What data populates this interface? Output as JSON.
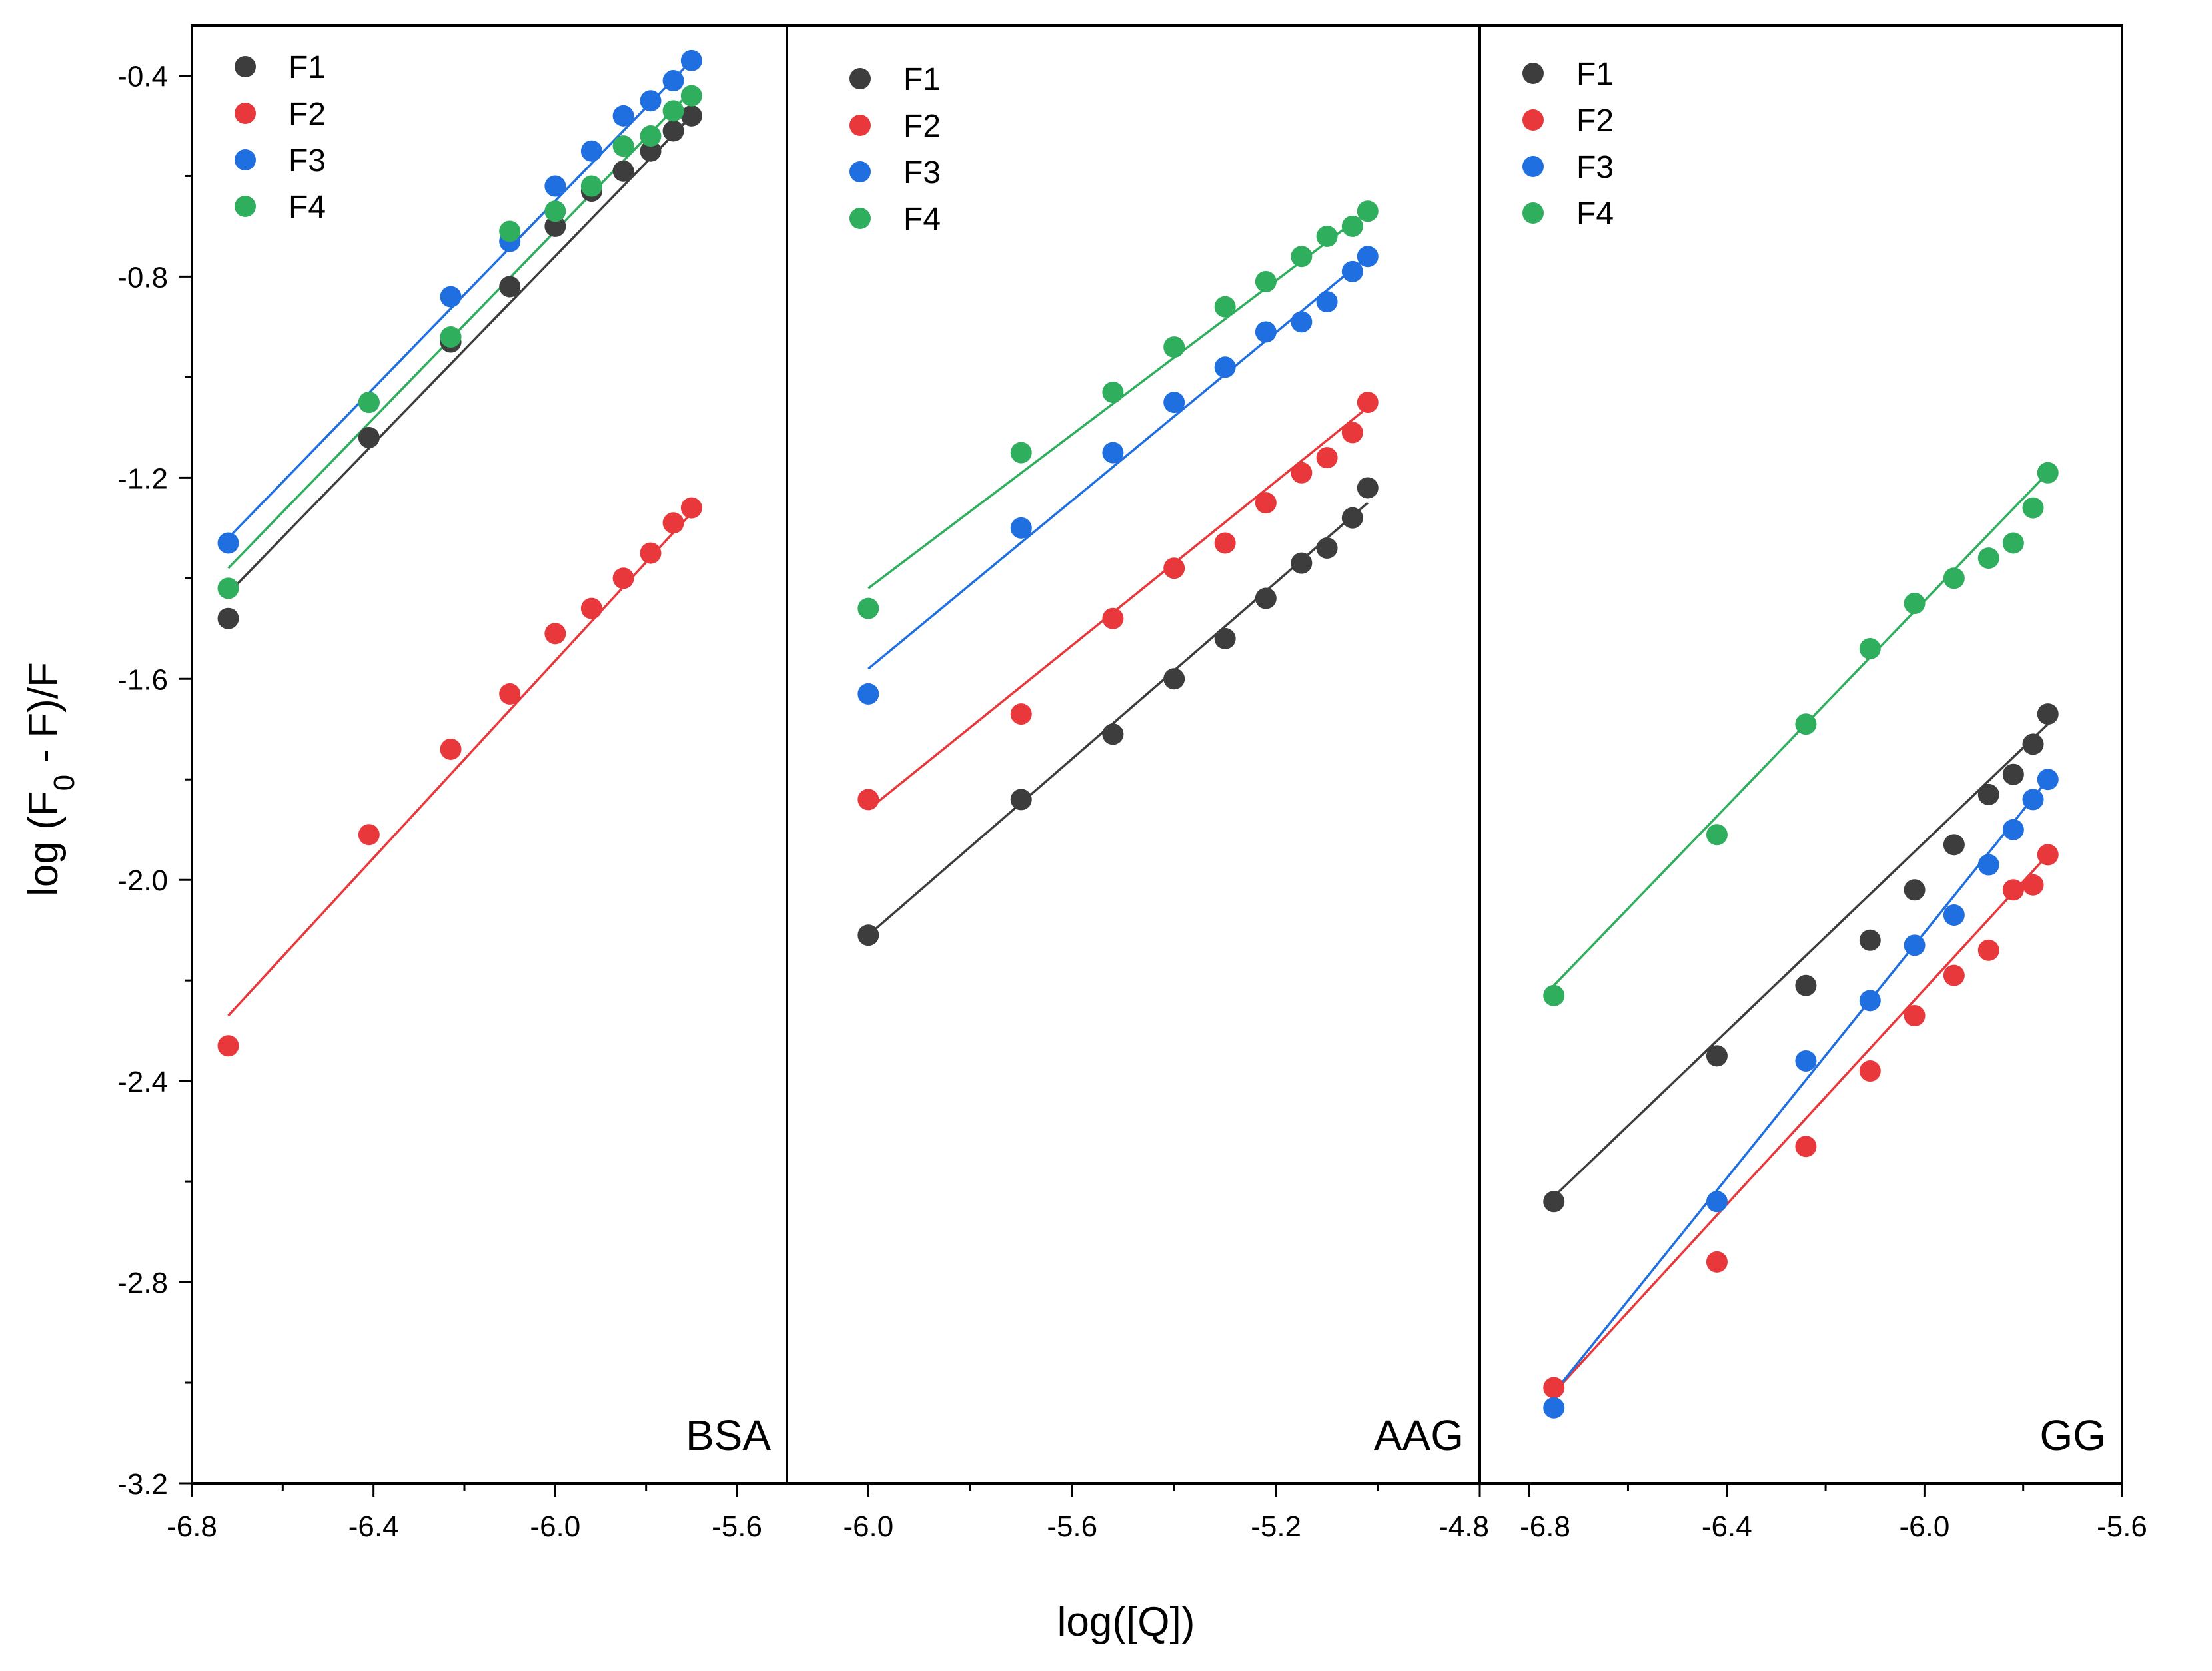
{
  "chart_data": {
    "type": "scatter",
    "xlabel": "log([Q])",
    "ylabel_prefix": "log (F",
    "ylabel_sub": "0",
    "ylabel_suffix": " - F)/F",
    "ylim": [
      -3.2,
      -0.3
    ],
    "yticks": [
      "-0.4",
      "-0.8",
      "-1.2",
      "-1.6",
      "-2.0",
      "-2.4",
      "-2.8",
      "-3.2"
    ],
    "yticks_values": [
      -0.4,
      -0.8,
      -1.2,
      -1.6,
      -2.0,
      -2.4,
      -2.8,
      -3.2
    ],
    "grid": false,
    "legend_position": "top-left",
    "colors": {
      "F1": "#3d3d3d",
      "F2": "#e8383b",
      "F3": "#1f6fe0",
      "F4": "#2fae5e"
    },
    "panels": [
      {
        "label": "BSA",
        "xlim": [
          -6.8,
          -5.49
        ],
        "xticks": [
          "-6.8",
          "-6.4",
          "-6.0",
          "-5.6"
        ],
        "xticks_values": [
          -6.8,
          -6.4,
          -6.0,
          -5.6
        ],
        "series": [
          {
            "name": "F1",
            "x": [
              -6.72,
              -6.41,
              -6.23,
              -6.1,
              -6.0,
              -5.92,
              -5.85,
              -5.79,
              -5.74,
              -5.7
            ],
            "y": [
              -1.48,
              -1.12,
              -0.93,
              -0.82,
              -0.7,
              -0.63,
              -0.59,
              -0.55,
              -0.51,
              -0.48
            ],
            "fit": [
              [
                -6.72,
                -1.43
              ],
              [
                -5.7,
                -0.48
              ]
            ]
          },
          {
            "name": "F2",
            "x": [
              -6.72,
              -6.41,
              -6.23,
              -6.1,
              -6.0,
              -5.92,
              -5.85,
              -5.79,
              -5.74,
              -5.7
            ],
            "y": [
              -2.33,
              -1.91,
              -1.74,
              -1.63,
              -1.51,
              -1.46,
              -1.4,
              -1.35,
              -1.29,
              -1.26
            ],
            "fit": [
              [
                -6.72,
                -2.27
              ],
              [
                -5.7,
                -1.27
              ]
            ]
          },
          {
            "name": "F3",
            "x": [
              -6.72,
              -6.41,
              -6.23,
              -6.1,
              -6.0,
              -5.92,
              -5.85,
              -5.79,
              -5.74,
              -5.7
            ],
            "y": [
              -1.33,
              -1.05,
              -0.84,
              -0.73,
              -0.62,
              -0.55,
              -0.48,
              -0.45,
              -0.41,
              -0.37
            ],
            "fit": [
              [
                -6.72,
                -1.32
              ],
              [
                -5.7,
                -0.37
              ]
            ]
          },
          {
            "name": "F4",
            "x": [
              -6.72,
              -6.41,
              -6.23,
              -6.1,
              -6.0,
              -5.92,
              -5.85,
              -5.79,
              -5.74,
              -5.7
            ],
            "y": [
              -1.42,
              -1.05,
              -0.92,
              -0.71,
              -0.67,
              -0.62,
              -0.54,
              -0.52,
              -0.47,
              -0.44
            ],
            "fit": [
              [
                -6.72,
                -1.38
              ],
              [
                -5.7,
                -0.43
              ]
            ]
          }
        ]
      },
      {
        "label": "AAG",
        "xlim": [
          -6.16,
          -4.8
        ],
        "xticks": [
          "-6.0",
          "-5.6",
          "-5.2",
          "-4.8"
        ],
        "xticks_values": [
          -6.0,
          -5.6,
          -5.2,
          -4.8
        ],
        "series": [
          {
            "name": "F1",
            "x": [
              -6.0,
              -5.7,
              -5.52,
              -5.4,
              -5.3,
              -5.22,
              -5.15,
              -5.1,
              -5.05,
              -5.02
            ],
            "y": [
              -2.11,
              -1.84,
              -1.71,
              -1.6,
              -1.52,
              -1.44,
              -1.37,
              -1.34,
              -1.28,
              -1.22
            ],
            "fit": [
              [
                -6.0,
                -2.11
              ],
              [
                -5.02,
                -1.25
              ]
            ]
          },
          {
            "name": "F2",
            "x": [
              -6.0,
              -5.7,
              -5.52,
              -5.4,
              -5.3,
              -5.22,
              -5.15,
              -5.1,
              -5.05,
              -5.02
            ],
            "y": [
              -1.84,
              -1.67,
              -1.48,
              -1.38,
              -1.33,
              -1.25,
              -1.19,
              -1.16,
              -1.11,
              -1.05
            ],
            "fit": [
              [
                -6.0,
                -1.86
              ],
              [
                -5.02,
                -1.06
              ]
            ]
          },
          {
            "name": "F3",
            "x": [
              -6.0,
              -5.7,
              -5.52,
              -5.4,
              -5.3,
              -5.22,
              -5.15,
              -5.1,
              -5.05,
              -5.02
            ],
            "y": [
              -1.63,
              -1.3,
              -1.15,
              -1.05,
              -0.98,
              -0.91,
              -0.89,
              -0.85,
              -0.79,
              -0.76
            ],
            "fit": [
              [
                -6.0,
                -1.58
              ],
              [
                -5.02,
                -0.76
              ]
            ]
          },
          {
            "name": "F4",
            "x": [
              -6.0,
              -5.7,
              -5.52,
              -5.4,
              -5.3,
              -5.22,
              -5.15,
              -5.1,
              -5.05,
              -5.02
            ],
            "y": [
              -1.46,
              -1.15,
              -1.03,
              -0.94,
              -0.86,
              -0.81,
              -0.76,
              -0.72,
              -0.7,
              -0.67
            ],
            "fit": [
              [
                -6.0,
                -1.42
              ],
              [
                -5.02,
                -0.67
              ]
            ]
          }
        ]
      },
      {
        "label": "GG",
        "xlim": [
          -6.9,
          -5.6
        ],
        "xticks": [
          "-6.8",
          "-6.4",
          "-6.0",
          "-5.6"
        ],
        "xticks_values": [
          -6.8,
          -6.4,
          -6.0,
          -5.6
        ],
        "series": [
          {
            "name": "F1",
            "x": [
              -6.75,
              -6.42,
              -6.24,
              -6.11,
              -6.02,
              -5.94,
              -5.87,
              -5.82,
              -5.78,
              -5.75
            ],
            "y": [
              -2.64,
              -2.35,
              -2.21,
              -2.12,
              -2.02,
              -1.93,
              -1.83,
              -1.79,
              -1.73,
              -1.67
            ],
            "fit": [
              [
                -6.75,
                -2.63
              ],
              [
                -5.75,
                -1.69
              ]
            ]
          },
          {
            "name": "F2",
            "x": [
              -6.75,
              -6.42,
              -6.24,
              -6.11,
              -6.02,
              -5.94,
              -5.87,
              -5.82,
              -5.78,
              -5.75
            ],
            "y": [
              -3.01,
              -2.76,
              -2.53,
              -2.38,
              -2.27,
              -2.19,
              -2.14,
              -2.02,
              -2.01,
              -1.95
            ],
            "fit": [
              [
                -6.75,
                -3.02
              ],
              [
                -5.75,
                -1.95
              ]
            ]
          },
          {
            "name": "F3",
            "x": [
              -6.75,
              -6.42,
              -6.24,
              -6.11,
              -6.02,
              -5.94,
              -5.87,
              -5.82,
              -5.78,
              -5.75
            ],
            "y": [
              -3.05,
              -2.64,
              -2.36,
              -2.24,
              -2.13,
              -2.07,
              -1.97,
              -1.9,
              -1.84,
              -1.8
            ],
            "fit": [
              [
                -6.75,
                -3.02
              ],
              [
                -5.75,
                -1.8
              ]
            ]
          },
          {
            "name": "F4",
            "x": [
              -6.75,
              -6.42,
              -6.24,
              -6.11,
              -6.02,
              -5.94,
              -5.87,
              -5.82,
              -5.78,
              -5.75
            ],
            "y": [
              -2.23,
              -1.91,
              -1.69,
              -1.54,
              -1.45,
              -1.4,
              -1.36,
              -1.33,
              -1.26,
              -1.19
            ],
            "fit": [
              [
                -6.75,
                -2.21
              ],
              [
                -5.75,
                -1.19
              ]
            ]
          }
        ]
      }
    ]
  }
}
